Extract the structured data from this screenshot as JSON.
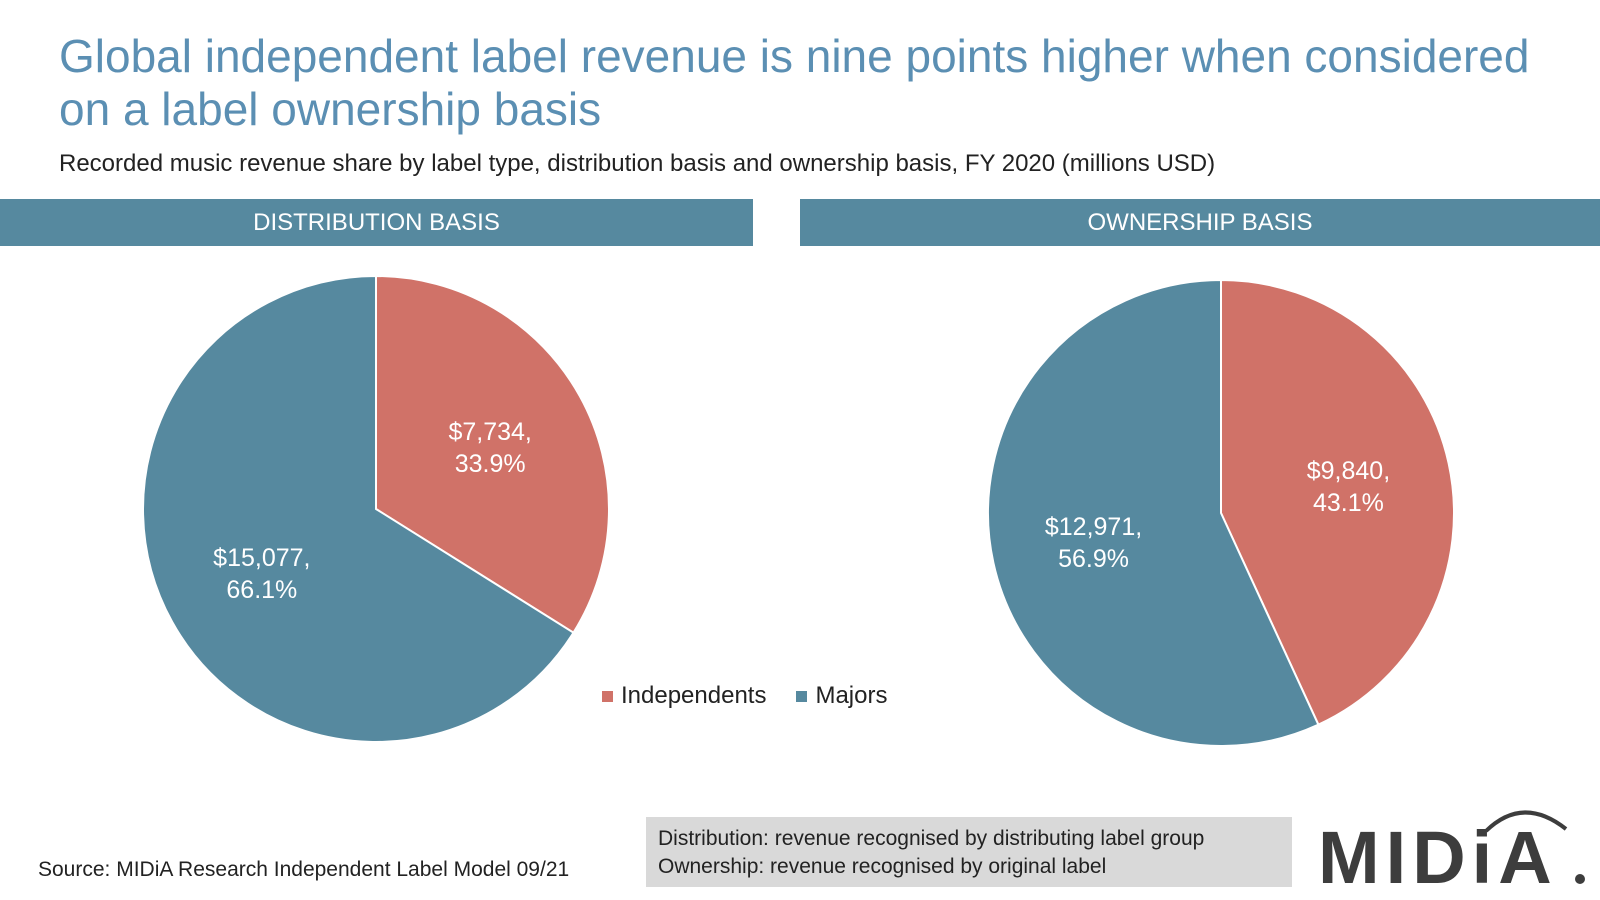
{
  "title": "Global independent label revenue is nine points higher when considered on a label ownership basis",
  "subtitle": "Recorded music revenue share by label type, distribution basis and ownership basis, FY 2020 (millions USD)",
  "colors": {
    "independents": "#d07268",
    "majors": "#56899f",
    "band": "#56899f",
    "title": "#5b8fb3"
  },
  "chart_data": [
    {
      "type": "pie",
      "title": "DISTRIBUTION BASIS",
      "categories": [
        "Independents",
        "Majors"
      ],
      "values": [
        7734,
        15077
      ],
      "labels": [
        {
          "value": "$7,734,",
          "pct": "33.9%"
        },
        {
          "value": "$15,077,",
          "pct": "66.1%"
        }
      ]
    },
    {
      "type": "pie",
      "title": "OWNERSHIP BASIS",
      "categories": [
        "Independents",
        "Majors"
      ],
      "values": [
        9840,
        12971
      ],
      "labels": [
        {
          "value": "$9,840,",
          "pct": "43.1%"
        },
        {
          "value": "$12,971,",
          "pct": "56.9%"
        }
      ]
    }
  ],
  "legend": [
    {
      "label": "Independents",
      "color": "#d07268"
    },
    {
      "label": "Majors",
      "color": "#56899f"
    }
  ],
  "source": "Source: MIDiA Research Independent Label Model 09/21",
  "notes": [
    "Distribution: revenue recognised by distributing label group",
    "Ownership: revenue recognised by original label"
  ],
  "logo": {
    "text": "MIDiA"
  }
}
